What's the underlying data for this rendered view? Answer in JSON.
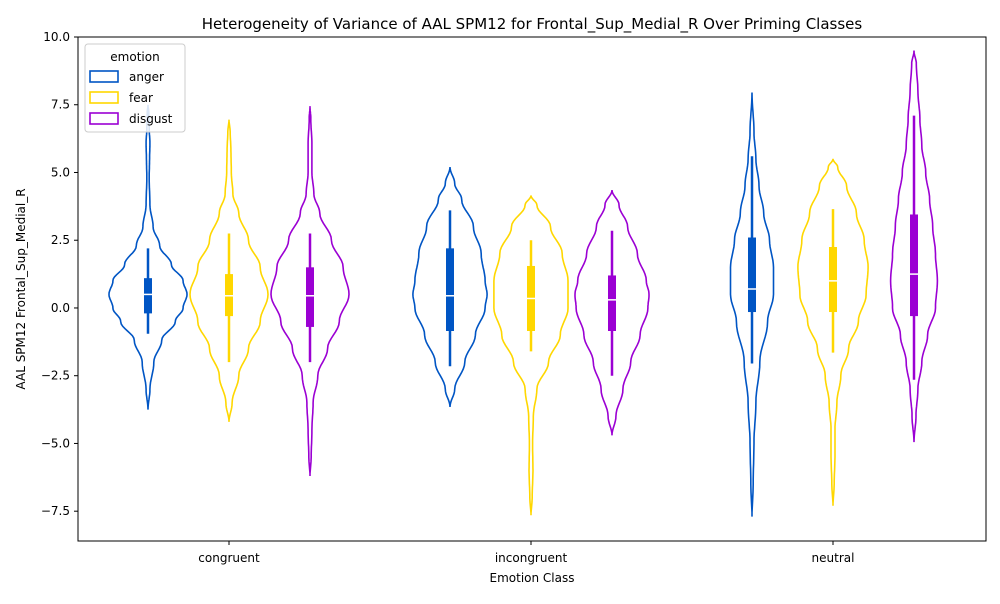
{
  "chart_data": {
    "type": "violin",
    "title": "Heterogeneity of Variance of AAL SPM12 for Frontal_Sup_Medial_R Over Priming Classes",
    "xlabel": "Emotion Class",
    "ylabel": "AAL SPM12 Frontal_Sup_Medial_R",
    "categories": [
      "congruent",
      "incongruent",
      "neutral"
    ],
    "ylim": [
      -8.6,
      10.0
    ],
    "yticks": [
      -7.5,
      -5.0,
      -2.5,
      0.0,
      2.5,
      5.0,
      7.5,
      10.0
    ],
    "ytick_labels": [
      "−7.5",
      "−5.0",
      "−2.5",
      "0.0",
      "2.5",
      "5.0",
      "7.5",
      "10.0"
    ],
    "grid": false,
    "legend": {
      "title": "emotion",
      "placement": "top-left"
    },
    "series": [
      {
        "name": "anger",
        "color": "#0055c4",
        "groups": [
          {
            "category": "congruent",
            "min": -3.75,
            "max": 7.5,
            "q1": -0.2,
            "median": 0.5,
            "q3": 1.1,
            "whisker_low": -0.95,
            "whisker_high": 2.2,
            "profile": [
              [
                -3.75,
                0.0
              ],
              [
                -3.0,
                0.05
              ],
              [
                -2.0,
                0.15
              ],
              [
                -1.2,
                0.35
              ],
              [
                -0.5,
                0.7
              ],
              [
                0.0,
                0.9
              ],
              [
                0.5,
                1.0
              ],
              [
                1.0,
                0.9
              ],
              [
                1.6,
                0.6
              ],
              [
                2.3,
                0.3
              ],
              [
                3.0,
                0.13
              ],
              [
                3.8,
                0.05
              ],
              [
                4.8,
                0.03
              ],
              [
                5.5,
                0.04
              ],
              [
                6.1,
                0.05
              ],
              [
                6.6,
                0.03
              ],
              [
                7.2,
                0.02
              ],
              [
                7.5,
                0.0
              ]
            ]
          },
          {
            "category": "incongruent",
            "min": -3.65,
            "max": 5.2,
            "q1": -0.85,
            "median": 0.45,
            "q3": 2.2,
            "whisker_low": -2.15,
            "whisker_high": 3.6,
            "profile": [
              [
                -3.65,
                0.0
              ],
              [
                -3.0,
                0.12
              ],
              [
                -2.0,
                0.38
              ],
              [
                -1.0,
                0.65
              ],
              [
                0.0,
                0.9
              ],
              [
                0.5,
                0.95
              ],
              [
                1.0,
                0.9
              ],
              [
                2.0,
                0.8
              ],
              [
                3.0,
                0.6
              ],
              [
                4.0,
                0.3
              ],
              [
                4.6,
                0.12
              ],
              [
                5.2,
                0.0
              ]
            ]
          },
          {
            "category": "neutral",
            "min": -7.7,
            "max": 7.95,
            "q1": -0.15,
            "median": 0.7,
            "q3": 2.6,
            "whisker_low": -2.05,
            "whisker_high": 5.6,
            "profile": [
              [
                -7.7,
                0.0
              ],
              [
                -6.5,
                0.03
              ],
              [
                -5.0,
                0.05
              ],
              [
                -3.5,
                0.1
              ],
              [
                -2.0,
                0.2
              ],
              [
                -0.5,
                0.4
              ],
              [
                0.5,
                0.55
              ],
              [
                1.5,
                0.55
              ],
              [
                2.5,
                0.45
              ],
              [
                3.5,
                0.3
              ],
              [
                4.5,
                0.18
              ],
              [
                5.5,
                0.1
              ],
              [
                6.5,
                0.05
              ],
              [
                7.95,
                0.0
              ]
            ]
          }
        ]
      },
      {
        "name": "fear",
        "color": "#ffd700",
        "groups": [
          {
            "category": "congruent",
            "min": -4.2,
            "max": 6.95,
            "q1": -0.3,
            "median": 0.45,
            "q3": 1.25,
            "whisker_low": -2.0,
            "whisker_high": 2.75,
            "profile": [
              [
                -4.2,
                0.0
              ],
              [
                -3.5,
                0.08
              ],
              [
                -2.5,
                0.25
              ],
              [
                -1.5,
                0.5
              ],
              [
                -0.5,
                0.8
              ],
              [
                0.5,
                1.0
              ],
              [
                1.5,
                0.8
              ],
              [
                2.5,
                0.5
              ],
              [
                3.5,
                0.25
              ],
              [
                4.2,
                0.1
              ],
              [
                5.0,
                0.06
              ],
              [
                5.8,
                0.05
              ],
              [
                6.5,
                0.03
              ],
              [
                6.95,
                0.0
              ]
            ]
          },
          {
            "category": "incongruent",
            "min": -7.65,
            "max": 4.15,
            "q1": -0.85,
            "median": 0.35,
            "q3": 1.55,
            "whisker_low": -1.6,
            "whisker_high": 2.5,
            "profile": [
              [
                -7.65,
                0.0
              ],
              [
                -7.0,
                0.03
              ],
              [
                -6.0,
                0.05
              ],
              [
                -5.0,
                0.04
              ],
              [
                -4.0,
                0.06
              ],
              [
                -3.0,
                0.15
              ],
              [
                -2.0,
                0.45
              ],
              [
                -1.0,
                0.75
              ],
              [
                0.0,
                0.95
              ],
              [
                1.0,
                0.95
              ],
              [
                2.0,
                0.8
              ],
              [
                3.0,
                0.5
              ],
              [
                3.8,
                0.15
              ],
              [
                4.15,
                0.0
              ]
            ]
          },
          {
            "category": "neutral",
            "min": -7.3,
            "max": 5.5,
            "q1": -0.15,
            "median": 1.0,
            "q3": 2.25,
            "whisker_low": -1.65,
            "whisker_high": 3.65,
            "profile": [
              [
                -7.3,
                0.0
              ],
              [
                -6.5,
                0.03
              ],
              [
                -5.5,
                0.05
              ],
              [
                -4.5,
                0.05
              ],
              [
                -3.5,
                0.1
              ],
              [
                -2.5,
                0.2
              ],
              [
                -1.5,
                0.4
              ],
              [
                -0.5,
                0.65
              ],
              [
                0.5,
                0.85
              ],
              [
                1.5,
                0.9
              ],
              [
                2.5,
                0.8
              ],
              [
                3.5,
                0.6
              ],
              [
                4.5,
                0.35
              ],
              [
                5.2,
                0.12
              ],
              [
                5.5,
                0.0
              ]
            ]
          }
        ]
      },
      {
        "name": "disgust",
        "color": "#9b00d3",
        "groups": [
          {
            "category": "congruent",
            "min": -6.2,
            "max": 7.45,
            "q1": -0.7,
            "median": 0.45,
            "q3": 1.5,
            "whisker_low": -2.0,
            "whisker_high": 2.75,
            "profile": [
              [
                -6.2,
                0.0
              ],
              [
                -5.5,
                0.03
              ],
              [
                -4.5,
                0.05
              ],
              [
                -3.5,
                0.08
              ],
              [
                -2.5,
                0.2
              ],
              [
                -1.5,
                0.45
              ],
              [
                -0.5,
                0.75
              ],
              [
                0.5,
                1.0
              ],
              [
                1.5,
                0.85
              ],
              [
                2.5,
                0.55
              ],
              [
                3.5,
                0.25
              ],
              [
                4.2,
                0.1
              ],
              [
                5.0,
                0.05
              ],
              [
                6.0,
                0.05
              ],
              [
                7.0,
                0.02
              ],
              [
                7.45,
                0.0
              ]
            ]
          },
          {
            "category": "incongruent",
            "min": -4.7,
            "max": 4.35,
            "q1": -0.85,
            "median": 0.3,
            "q3": 1.2,
            "whisker_low": -2.5,
            "whisker_high": 2.85,
            "profile": [
              [
                -4.7,
                0.0
              ],
              [
                -4.0,
                0.1
              ],
              [
                -3.0,
                0.28
              ],
              [
                -2.0,
                0.48
              ],
              [
                -1.0,
                0.72
              ],
              [
                0.0,
                0.92
              ],
              [
                0.5,
                0.95
              ],
              [
                1.0,
                0.88
              ],
              [
                2.0,
                0.65
              ],
              [
                3.0,
                0.4
              ],
              [
                3.8,
                0.18
              ],
              [
                4.35,
                0.0
              ]
            ]
          },
          {
            "category": "neutral",
            "min": -4.95,
            "max": 9.5,
            "q1": -0.3,
            "median": 1.25,
            "q3": 3.45,
            "whisker_low": -2.65,
            "whisker_high": 7.1,
            "profile": [
              [
                -4.95,
                0.0
              ],
              [
                -4.0,
                0.05
              ],
              [
                -3.0,
                0.1
              ],
              [
                -2.0,
                0.2
              ],
              [
                -1.0,
                0.35
              ],
              [
                0.0,
                0.55
              ],
              [
                1.0,
                0.6
              ],
              [
                2.0,
                0.55
              ],
              [
                3.0,
                0.48
              ],
              [
                4.0,
                0.4
              ],
              [
                5.0,
                0.3
              ],
              [
                6.0,
                0.2
              ],
              [
                7.0,
                0.15
              ],
              [
                8.0,
                0.1
              ],
              [
                9.0,
                0.06
              ],
              [
                9.5,
                0.0
              ]
            ]
          }
        ]
      }
    ]
  }
}
